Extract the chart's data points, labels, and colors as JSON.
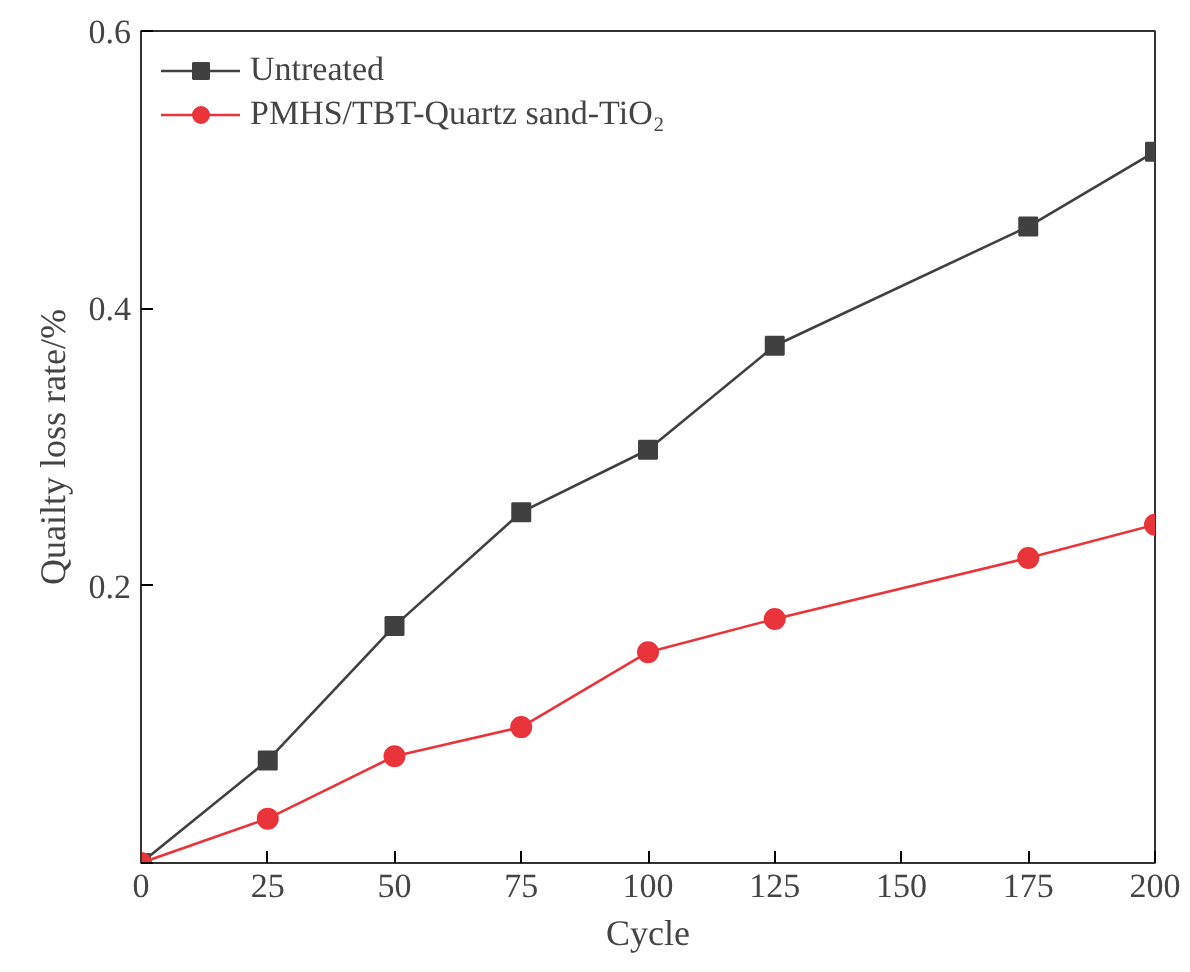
{
  "chart_data": {
    "type": "line",
    "xlabel": "Cycle",
    "ylabel": "Quailty loss rate/%",
    "x": [
      0,
      25,
      50,
      75,
      100,
      125,
      175,
      200
    ],
    "series": [
      {
        "name": "Untreated",
        "color": "#404040",
        "marker": "square",
        "values": [
          0,
          0.074,
          0.171,
          0.253,
          0.298,
          0.373,
          0.459,
          0.513
        ]
      },
      {
        "name": "PMHS/TBT-Quartz sand-TiO₂",
        "color": "#e8343a",
        "marker": "circle",
        "values": [
          0,
          0.032,
          0.077,
          0.098,
          0.152,
          0.176,
          0.22,
          0.244
        ]
      }
    ],
    "xlim": [
      0,
      200
    ],
    "xticks": [
      0,
      25,
      50,
      75,
      100,
      125,
      150,
      175,
      200
    ],
    "ylim": [
      0,
      0.6
    ],
    "yticks": [
      {
        "value": 0,
        "label": null
      },
      0.2,
      0.4,
      0.6
    ],
    "grid": false,
    "legend": "top left",
    "line_style": "solid"
  }
}
